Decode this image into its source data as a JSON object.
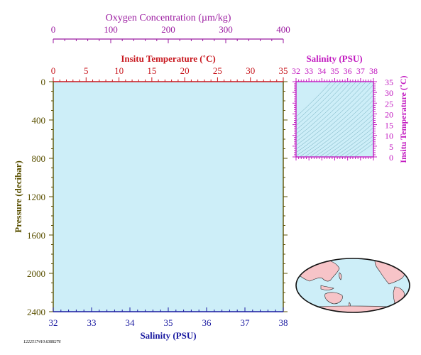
{
  "chart_data": [
    {
      "type": "line",
      "panel": "profile",
      "title": "",
      "axes": {
        "oxygen": {
          "label": "Oxygen Concentration (µm/kg)",
          "range": [
            0,
            400
          ],
          "ticks": [
            0,
            100,
            200,
            300,
            400
          ],
          "color": "#9b1aa0"
        },
        "temperature": {
          "label": "Insitu Temperature (˚C)",
          "range": [
            0,
            35
          ],
          "ticks": [
            0,
            5,
            10,
            15,
            20,
            25,
            30,
            35
          ],
          "color": "#c8171e"
        },
        "pressure": {
          "label": "Pressure (decibar)",
          "range": [
            0,
            2400
          ],
          "ticks": [
            0,
            400,
            800,
            1200,
            1600,
            2000,
            2400
          ],
          "inverted": true,
          "color": "#5a5000"
        },
        "salinity": {
          "label": "Salinity (PSU)",
          "range": [
            32,
            38
          ],
          "ticks": [
            32,
            33,
            34,
            35,
            36,
            37,
            38
          ],
          "color": "#1a1aa0"
        }
      },
      "series": [],
      "background": "#cdeef8"
    },
    {
      "type": "scatter",
      "panel": "ts-diagram",
      "axes": {
        "x": {
          "label": "Salinity (PSU)",
          "range": [
            32,
            38
          ],
          "ticks": [
            32,
            33,
            34,
            35,
            36,
            37,
            38
          ],
          "color": "#c21ac0"
        },
        "y": {
          "label": "Insitu Temperature (˚C)",
          "range": [
            0,
            35
          ],
          "ticks": [
            0,
            5,
            10,
            15,
            20,
            25,
            30,
            35
          ],
          "color": "#c21ac0"
        }
      },
      "series": [],
      "background": "#cdeef8"
    }
  ],
  "map": {
    "projection": "world",
    "land_color": "#f7c4c8",
    "ocean_color": "#cdeef8"
  },
  "footer": {
    "id_text": "1222517410.6388276"
  }
}
